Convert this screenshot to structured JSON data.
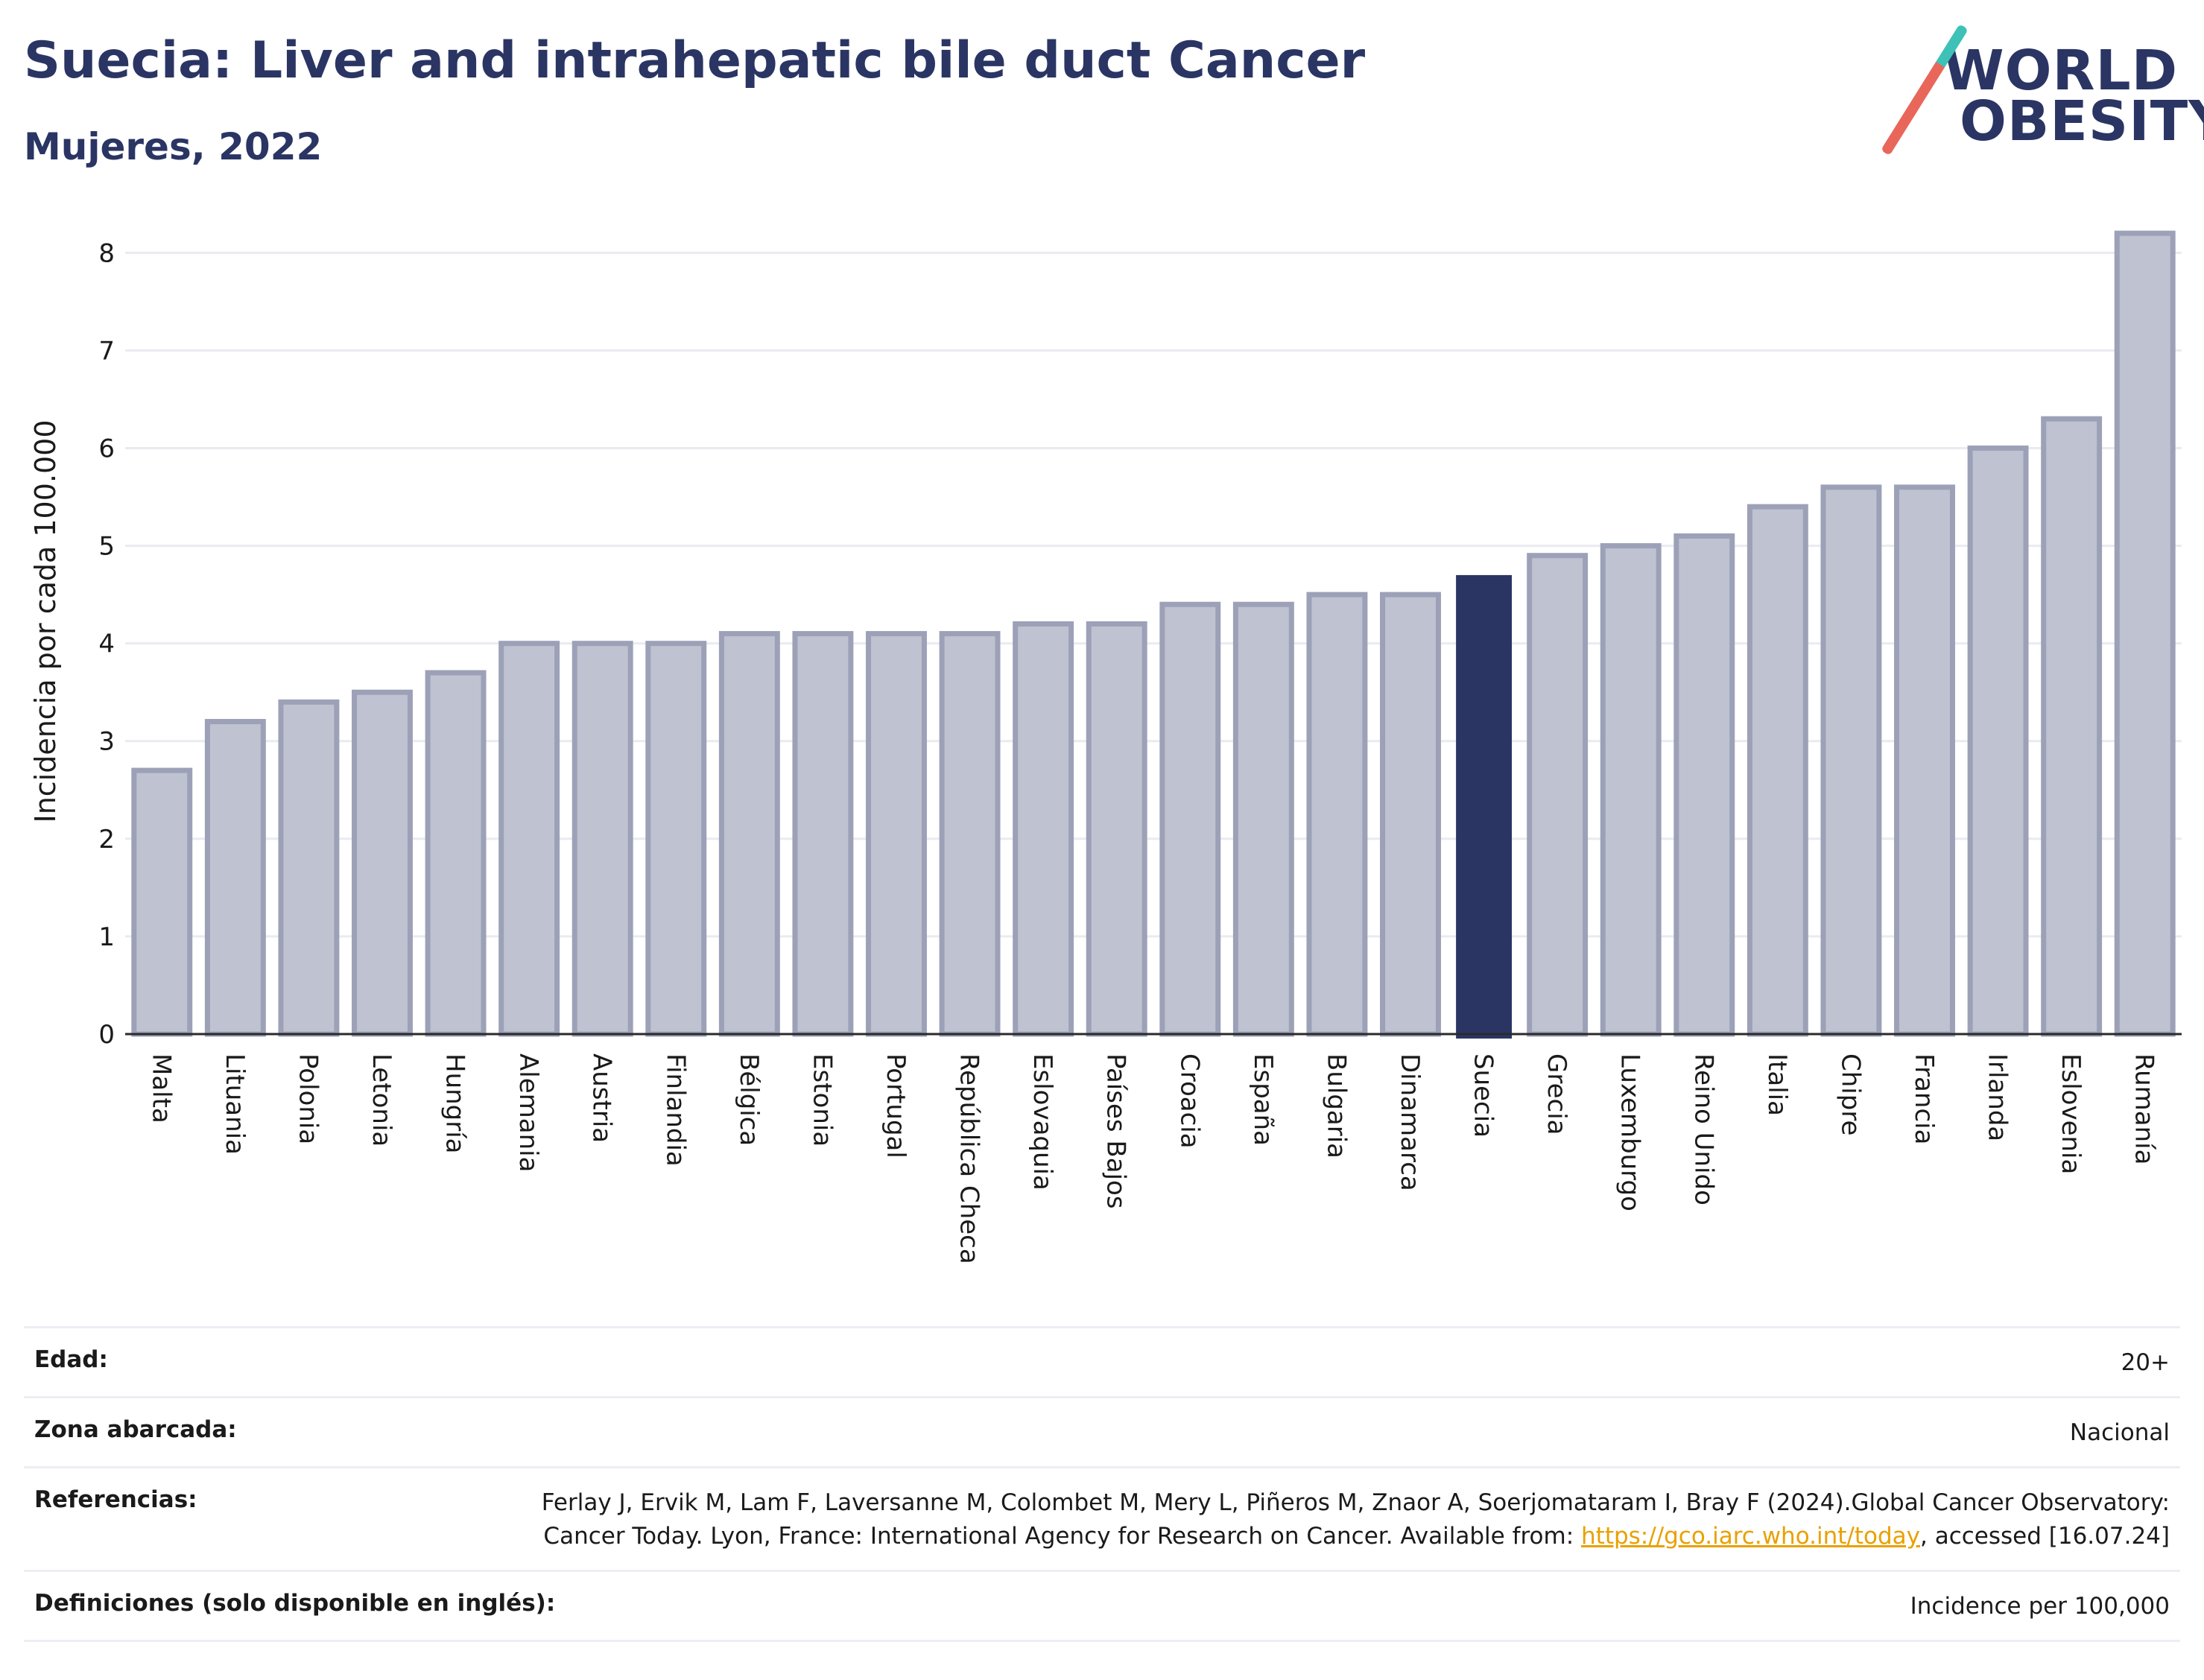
{
  "header": {
    "title": "Suecia: Liver and intrahepatic bile duct Cancer",
    "subtitle": "Mujeres, 2022"
  },
  "logo": {
    "line1": "WORLD",
    "line2": "OBESITY"
  },
  "colors": {
    "bar": "#bfc2d0",
    "bar_border": "#9ca1b8",
    "highlight": "#2a3564",
    "title": "#2a3564",
    "accent_teal": "#3ec1b6",
    "accent_coral": "#e8675a",
    "link": "#e8a100"
  },
  "chart_data": {
    "type": "bar",
    "ylabel": "Incidencia por cada 100.000",
    "ylim": [
      0,
      8.3
    ],
    "yticks": [
      0,
      1,
      2,
      3,
      4,
      5,
      6,
      7,
      8
    ],
    "grid": true,
    "highlight": "Suecia",
    "categories": [
      "Malta",
      "Lituania",
      "Polonia",
      "Letonia",
      "Hungría",
      "Alemania",
      "Austria",
      "Finlandia",
      "Bélgica",
      "Estonia",
      "Portugal",
      "República Checa",
      "Eslovaquia",
      "Países Bajos",
      "Croacia",
      "España",
      "Bulgaria",
      "Dinamarca",
      "Suecia",
      "Grecia",
      "Luxemburgo",
      "Reino Unido",
      "Italia",
      "Chipre",
      "Francia",
      "Irlanda",
      "Eslovenia",
      "Rumanía"
    ],
    "values": [
      2.7,
      3.2,
      3.4,
      3.5,
      3.7,
      4.0,
      4.0,
      4.0,
      4.1,
      4.1,
      4.1,
      4.1,
      4.2,
      4.2,
      4.4,
      4.4,
      4.5,
      4.5,
      4.7,
      4.9,
      5.0,
      5.1,
      5.4,
      5.6,
      5.6,
      6.0,
      6.3,
      8.2
    ]
  },
  "meta": {
    "age_label": "Edad:",
    "age_value": "20+",
    "zone_label": "Zona abarcada:",
    "zone_value": "Nacional",
    "refs_label": "Referencias:",
    "refs_text1": "Ferlay J, Ervik M, Lam F, Laversanne M, Colombet M, Mery L, Piñeros M, Znaor A, Soerjomataram I, Bray F (2024).Global Cancer Observatory: Cancer Today. Lyon, France: International Agency for Research on Cancer. Available from: ",
    "refs_link": "https://gco.iarc.who.int/today",
    "refs_text2": ", accessed [16.07.24]",
    "defs_label": "Definiciones (solo disponible en inglés):",
    "defs_value": "Incidence per 100,000"
  }
}
